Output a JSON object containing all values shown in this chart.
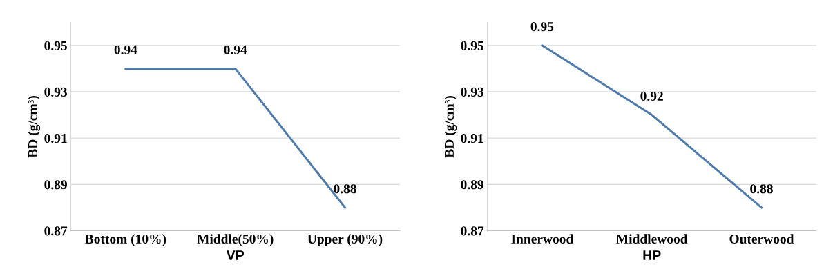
{
  "chart_data": [
    {
      "type": "line",
      "categories": [
        "Bottom (10%)",
        "Middle(50%)",
        "Upper (90%)"
      ],
      "xlabel": "VP",
      "ylabel": "BD (g/cm³)",
      "ylim": [
        0.87,
        0.96
      ],
      "yticks": [
        0.87,
        0.89,
        0.91,
        0.93,
        0.95
      ],
      "grid": "y",
      "data_labels": true,
      "series": [
        {
          "color": "#4f7bab",
          "values": [
            0.94,
            0.94,
            0.88
          ]
        }
      ]
    },
    {
      "type": "line",
      "categories": [
        "Innerwood",
        "Middlewood",
        "Outerwood"
      ],
      "xlabel": "HP",
      "ylabel": "BD (g/cm³)",
      "ylim": [
        0.87,
        0.96
      ],
      "yticks": [
        0.87,
        0.89,
        0.91,
        0.93,
        0.95
      ],
      "grid": "y",
      "data_labels": true,
      "series": [
        {
          "color": "#4f7bab",
          "values": [
            0.95,
            0.92,
            0.88
          ]
        }
      ]
    }
  ]
}
